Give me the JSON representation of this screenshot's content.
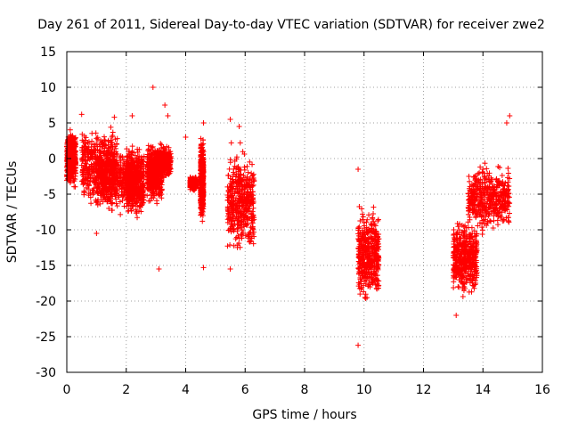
{
  "chart_data": {
    "type": "scatter",
    "title": "Day 261 of 2011, Sidereal Day-to-day VTEC variation (SDTVAR) for receiver zwe2",
    "xlabel": "GPS time / hours",
    "ylabel": "SDTVAR / TECUs",
    "xlim": [
      0,
      16
    ],
    "ylim": [
      -30,
      15
    ],
    "x_ticks": [
      0,
      2,
      4,
      6,
      8,
      10,
      12,
      14,
      16
    ],
    "y_ticks": [
      -30,
      -25,
      -20,
      -15,
      -10,
      -5,
      0,
      5,
      10,
      15
    ],
    "grid": true,
    "legend": "none",
    "marker": "plus",
    "series_color": "#ff0000",
    "series": [
      {
        "name": "zwe2 SDTVAR",
        "clusters": [
          {
            "x_range": [
              0.0,
              0.3
            ],
            "y_range": [
              -4.5,
              4.5
            ]
          },
          {
            "x_range": [
              0.5,
              1.7
            ],
            "y_range": [
              -7.5,
              5.5
            ]
          },
          {
            "x_range": [
              1.0,
              2.2
            ],
            "y_range": [
              -8.5,
              3.0
            ]
          },
          {
            "x_range": [
              2.0,
              2.6
            ],
            "y_range": [
              -9.0,
              2.5
            ]
          },
          {
            "x_range": [
              2.7,
              3.2
            ],
            "y_range": [
              -7.0,
              3.0
            ]
          },
          {
            "x_range": [
              3.0,
              3.5
            ],
            "y_range": [
              -3.0,
              2.0
            ]
          },
          {
            "x_range": [
              4.15,
              4.35
            ],
            "y_range": [
              -4.5,
              -2.5
            ]
          },
          {
            "x_range": [
              4.5,
              4.6
            ],
            "y_range": [
              -10.0,
              4.0
            ]
          },
          {
            "x_range": [
              5.4,
              6.3
            ],
            "y_range": [
              -14.5,
              2.5
            ]
          },
          {
            "x_range": [
              9.8,
              10.5
            ],
            "y_range": [
              -21.0,
              -6.0
            ]
          },
          {
            "x_range": [
              13.0,
              13.8
            ],
            "y_range": [
              -20.0,
              -8.0
            ]
          },
          {
            "x_range": [
              13.5,
              14.9
            ],
            "y_range": [
              -11.0,
              0.0
            ]
          }
        ],
        "points": [
          [
            0.5,
            6.2
          ],
          [
            1.0,
            -10.5
          ],
          [
            1.6,
            5.8
          ],
          [
            2.2,
            6.0
          ],
          [
            2.9,
            10.0
          ],
          [
            3.1,
            -15.5
          ],
          [
            3.3,
            7.5
          ],
          [
            3.4,
            6.0
          ],
          [
            4.0,
            3.0
          ],
          [
            4.6,
            5.0
          ],
          [
            4.6,
            -15.3
          ],
          [
            5.5,
            5.5
          ],
          [
            5.5,
            -15.5
          ],
          [
            5.8,
            4.5
          ],
          [
            9.8,
            -26.2
          ],
          [
            9.8,
            -1.5
          ],
          [
            13.1,
            -22.0
          ],
          [
            14.9,
            6.0
          ],
          [
            14.8,
            5.0
          ],
          [
            14.0,
            -1.5
          ]
        ]
      }
    ]
  }
}
